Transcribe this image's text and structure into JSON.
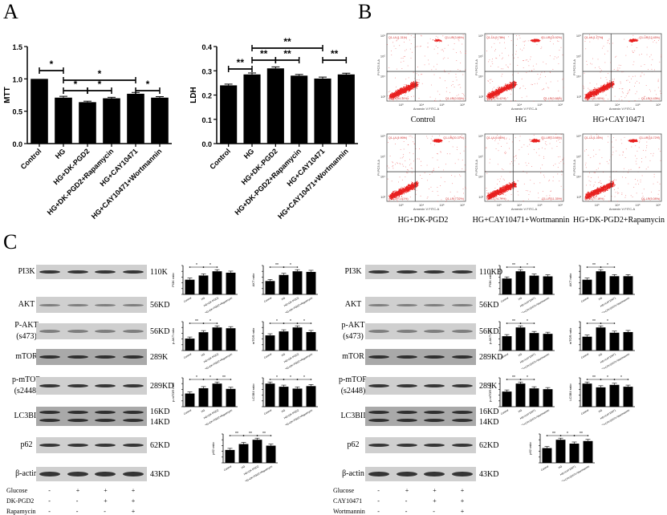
{
  "panels": {
    "A": "A",
    "B": "B",
    "C": "C"
  },
  "chart_data": [
    {
      "id": "mtt",
      "type": "bar",
      "title": "",
      "xlabel": "",
      "ylabel": "MTT",
      "ylim": [
        0,
        1.5
      ],
      "yticks": [
        "0.0",
        "0.5",
        "1.0",
        "1.5"
      ],
      "categories": [
        "Control",
        "HG",
        "HG+DK-PGD2",
        "HG+DK-PGD2+Rapamycin",
        "HG+CAY10471",
        "HG+CAY10471+Wortmannin"
      ],
      "values": [
        1.0,
        0.71,
        0.64,
        0.7,
        0.77,
        0.71
      ],
      "errors": [
        0.0,
        0.02,
        0.015,
        0.015,
        0.02,
        0.015
      ],
      "significance": [
        {
          "from": 0,
          "to": 1,
          "label": "*",
          "level": 0
        },
        {
          "from": 1,
          "to": 4,
          "label": "*",
          "level": 1
        },
        {
          "from": 1,
          "to": 2,
          "label": "*",
          "level": 2
        },
        {
          "from": 2,
          "to": 3,
          "label": "*",
          "level": 2
        },
        {
          "from": 4,
          "to": 5,
          "label": "*",
          "level": 2
        }
      ]
    },
    {
      "id": "ldh",
      "type": "bar",
      "title": "",
      "xlabel": "",
      "ylabel": "LDH",
      "ylim": [
        0,
        0.4
      ],
      "yticks": [
        "0.0",
        "0.1",
        "0.2",
        "0.3",
        "0.4"
      ],
      "categories": [
        "Control",
        "HG",
        "HG+DK-PGD2",
        "HG+DK-PGD2+Rapamycin",
        "HG+CAY10471",
        "HG+CAY10471+Wortmannin"
      ],
      "values": [
        0.24,
        0.285,
        0.31,
        0.28,
        0.268,
        0.285
      ],
      "errors": [
        0.005,
        0.006,
        0.006,
        0.005,
        0.006,
        0.005
      ],
      "significance": [
        {
          "from": 1,
          "to": 4,
          "label": "**",
          "level": 0
        },
        {
          "from": 1,
          "to": 2,
          "label": "**",
          "level": 1
        },
        {
          "from": 2,
          "to": 3,
          "label": "**",
          "level": 1
        },
        {
          "from": 4,
          "to": 5,
          "label": "**",
          "level": 1
        },
        {
          "from": 0,
          "to": 1,
          "label": "**",
          "level": 2
        }
      ]
    },
    {
      "id": "flow",
      "type": "scatter",
      "x_axis": "Annexin V FITC-A",
      "y_axis": "PI PC5.5-A",
      "plots": [
        {
          "caption": "Control",
          "UL": "Q1-UL(1.31%)",
          "UR": "Q1-UR(3.86%)",
          "LL": "Q1-LL(94.30%)",
          "LR": "Q1-LR(0.53%)"
        },
        {
          "caption": "HG",
          "UL": "Q1-UL(0.78%)",
          "UR": "Q1-UR(15.92%)",
          "LL": "Q1-LL(75.42%)",
          "LR": "Q1-LR(0.88%)"
        },
        {
          "caption": "HG+CAY10471",
          "UL": "Q1-UL(1.17%)",
          "UR": "Q1-UR(12.45%)",
          "LL": "Q1-LL(81.95%)",
          "LR": "Q1-LR(4.43%)"
        },
        {
          "caption": "HG+DK-PGD2",
          "UL": "Q1-UL(1.00%)",
          "UR": "Q1-UR(20.37%)",
          "LL": "Q1-LL(71.61%)",
          "LR": "Q1-LR(7.02%)"
        },
        {
          "caption": "HG+CAY10471+Wortmannin",
          "UL": "Q1-UL(0.86%)",
          "UR": "Q1-UR(13.08%)",
          "LL": "Q1-LL(74.79%)",
          "LR": "Q1-LR(11.35%)"
        },
        {
          "caption": "HG+DK-PGD2+Rapamycin",
          "UL": "Q1-UL(1.05%)",
          "UR": "Q1-UR(16.72%)",
          "LL": "Q1-LL(77.15%)",
          "LR": "Q1-LR(5.08%)"
        }
      ],
      "ticks": [
        "10³",
        "10⁴",
        "10⁵",
        "10⁶"
      ]
    },
    {
      "id": "wb-left-quant",
      "type": "bar",
      "categories": [
        "Control",
        "HG",
        "HG+DK-PGD2",
        "HG+DK-PGD2+Rapamycin"
      ],
      "charts": [
        {
          "ylabel": "PI3K ratio",
          "values": [
            0.21,
            0.27,
            0.33,
            0.31
          ],
          "sig": [
            "*",
            "*"
          ]
        },
        {
          "ylabel": "AKT ratio",
          "values": [
            0.22,
            0.32,
            0.38,
            0.37
          ],
          "sig": [
            "**",
            "*"
          ]
        },
        {
          "ylabel": "p-AKT ratio",
          "values": [
            0.15,
            0.23,
            0.29,
            0.28
          ],
          "sig": [
            "**",
            "*"
          ]
        },
        {
          "ylabel": "mTOR ratio",
          "values": [
            0.23,
            0.29,
            0.35,
            0.28
          ],
          "sig": [
            "*",
            "*",
            "*"
          ]
        },
        {
          "ylabel": "p-mTOR ratio",
          "values": [
            0.2,
            0.28,
            0.35,
            0.27
          ],
          "sig": [
            "*",
            "*",
            "**"
          ]
        },
        {
          "ylabel": "LC3BII ratio",
          "values": [
            0.74,
            0.64,
            0.58,
            0.66
          ],
          "sig": [
            "*",
            "*",
            "*"
          ]
        },
        {
          "ylabel": "p62 ratio",
          "values": [
            0.24,
            0.35,
            0.43,
            0.32
          ],
          "sig": [
            "**",
            "**",
            "**"
          ]
        }
      ]
    },
    {
      "id": "wb-right-quant",
      "type": "bar",
      "categories": [
        "Control",
        "HG",
        "HG+CAY10471",
        "HG+CAY10471+Wortmannin"
      ],
      "charts": [
        {
          "ylabel": "PI3K ratio",
          "values": [
            0.22,
            0.32,
            0.26,
            0.25
          ],
          "sig": [
            "**",
            "*"
          ]
        },
        {
          "ylabel": "AKT ratio",
          "values": [
            0.21,
            0.33,
            0.26,
            0.26
          ],
          "sig": [
            "**",
            "*"
          ]
        },
        {
          "ylabel": "p-AKT ratio",
          "values": [
            0.18,
            0.29,
            0.22,
            0.21
          ],
          "sig": [
            "**",
            "*"
          ]
        },
        {
          "ylabel": "mTOR ratio",
          "values": [
            0.21,
            0.35,
            0.27,
            0.28
          ],
          "sig": [
            "**",
            "*"
          ]
        },
        {
          "ylabel": "p-mTOR ratio",
          "values": [
            0.19,
            0.29,
            0.23,
            0.22
          ],
          "sig": [
            "**",
            "*"
          ]
        },
        {
          "ylabel": "LC3BII ratio",
          "values": [
            0.74,
            0.62,
            0.7,
            0.64
          ],
          "sig": [
            "**",
            "*",
            "*"
          ]
        },
        {
          "ylabel": "p62 ratio",
          "values": [
            0.23,
            0.36,
            0.3,
            0.34
          ],
          "sig": [
            "**",
            "*",
            "**"
          ]
        }
      ]
    }
  ],
  "blots": {
    "left": {
      "rows": [
        {
          "label": "PI3K",
          "kd": "110K"
        },
        {
          "label": "AKT",
          "kd": "56KD"
        },
        {
          "label": "P-AKT\n(s473)",
          "kd": "56KD"
        },
        {
          "label": "mTOR",
          "kd": "289K"
        },
        {
          "label": "p-mTOR\n(s2448)",
          "kd": "289KD"
        },
        {
          "label": "LC3BII",
          "kd": "16KD\n14KD"
        },
        {
          "label": "p62",
          "kd": "62KD"
        },
        {
          "label": "β-actin",
          "kd": "43KD"
        }
      ],
      "treatments": [
        {
          "name": "Glucose",
          "signs": [
            "-",
            "+",
            "+",
            "+"
          ]
        },
        {
          "name": "DK-PGD2",
          "signs": [
            "-",
            "-",
            "+",
            "+"
          ]
        },
        {
          "name": "Rapamycin",
          "signs": [
            "-",
            "-",
            "-",
            "+"
          ]
        }
      ]
    },
    "right": {
      "rows": [
        {
          "label": "PI3K",
          "kd": "110KD"
        },
        {
          "label": "AKT",
          "kd": "56KD"
        },
        {
          "label": "p-AKT\n(s473)",
          "kd": "56KD"
        },
        {
          "label": "mTOR",
          "kd": "289KD"
        },
        {
          "label": "p-mTOR\n(s2448)",
          "kd": "289K"
        },
        {
          "label": "LC3BII",
          "kd": "16KD\n14KD"
        },
        {
          "label": "p62",
          "kd": "62KD"
        },
        {
          "label": "β-actin",
          "kd": "43KD"
        }
      ],
      "treatments": [
        {
          "name": "Glucose",
          "signs": [
            "-",
            "+",
            "+",
            "+"
          ]
        },
        {
          "name": "CAY10471",
          "signs": [
            "-",
            "-",
            "+",
            "+"
          ]
        },
        {
          "name": "Wortmannin",
          "signs": [
            "-",
            "-",
            "-",
            "+"
          ]
        }
      ]
    }
  },
  "colors": {
    "bar": "#000000",
    "dot": "#e8201f",
    "quad_text": "#d0302f",
    "blot_bg": "#cfcfcf",
    "band": "#1a1a1a"
  }
}
